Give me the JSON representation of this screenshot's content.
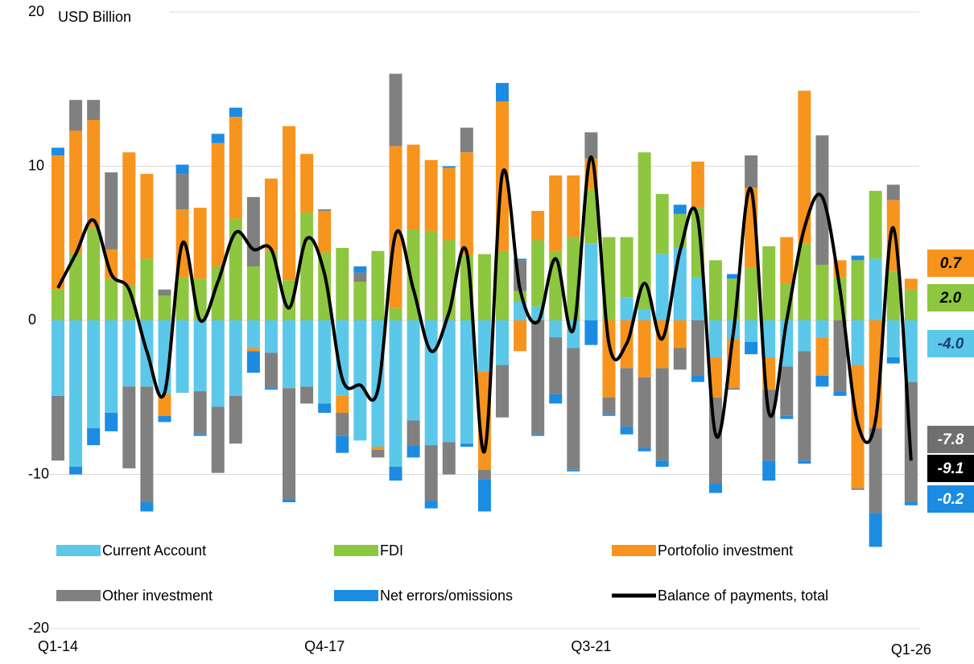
{
  "chart_data": {
    "type": "bar",
    "stacked": true,
    "ylabel": "USD Billion",
    "categories": [
      "Q1-14",
      null,
      null,
      null,
      null,
      null,
      null,
      null,
      null,
      null,
      null,
      null,
      null,
      null,
      null,
      "Q4-17",
      null,
      null,
      null,
      null,
      null,
      null,
      null,
      null,
      null,
      null,
      null,
      null,
      null,
      null,
      "Q3-21",
      null,
      null,
      null,
      null,
      null,
      null,
      null,
      null,
      null,
      null,
      null,
      null,
      null,
      null,
      null,
      null,
      null,
      "Q1-26"
    ],
    "ylim": [
      -20,
      20
    ],
    "yticks": [
      -20,
      -10,
      0,
      10,
      20
    ],
    "grid": true,
    "series": [
      {
        "name": "Current Account",
        "color": "#5bc8ea",
        "end_label": "-4.0",
        "values": [
          -4.9,
          -9.5,
          -7.0,
          -6.0,
          -4.3,
          -4.3,
          -4.8,
          -4.7,
          -4.6,
          -5.6,
          -4.9,
          -1.8,
          -2.1,
          -4.4,
          -4.3,
          -5.4,
          -4.9,
          -7.8,
          -8.2,
          -9.5,
          -6.5,
          -8.1,
          -7.9,
          -8.0,
          -3.3,
          -2.9,
          1.2,
          0.9,
          -1.1,
          -1.8,
          5.0,
          0,
          1.5,
          0.7,
          4.3,
          4.7,
          2.8,
          -2.4,
          -1.2,
          -1.4,
          -2.4,
          -3.0,
          -2.0,
          -1.1,
          0,
          -2.9,
          4.0,
          -2.4,
          -4.0
        ]
      },
      {
        "name": "FDI",
        "color": "#8dc63f",
        "end_label": "2.0",
        "values": [
          2.0,
          4.3,
          6.0,
          2.7,
          2.3,
          4.0,
          1.6,
          2.8,
          2.7,
          3.5,
          6.6,
          3.5,
          4.5,
          2.6,
          7.0,
          4.4,
          4.7,
          2.5,
          4.5,
          0.8,
          5.9,
          5.8,
          5.2,
          4.2,
          4.3,
          4.5,
          0.7,
          4.3,
          4.5,
          5.4,
          3.5,
          5.4,
          3.9,
          10.2,
          3.9,
          2.2,
          4.5,
          3.9,
          2.7,
          3.4,
          4.8,
          2.4,
          5.0,
          3.6,
          2.8,
          3.9,
          4.4,
          3.2,
          2.0
        ]
      },
      {
        "name": "Portofolio investment",
        "color": "#f7941d",
        "end_label": "0.7",
        "values": [
          8.7,
          8.0,
          7.0,
          1.9,
          8.6,
          5.5,
          -1.4,
          4.4,
          4.6,
          8.0,
          6.6,
          -0.2,
          4.7,
          10.0,
          3.8,
          2.7,
          -1.1,
          0,
          -0.2,
          10.5,
          5.5,
          4.6,
          4.7,
          6.7,
          -6.4,
          9.7,
          -2.0,
          1.9,
          4.9,
          4.0,
          2.0,
          -5.0,
          -3.1,
          -3.7,
          -3.1,
          -1.8,
          3.0,
          -2.6,
          -3.2,
          5.2,
          -2.1,
          3.0,
          9.9,
          -2.5,
          1.1,
          -8.0,
          -7.0,
          4.6,
          0.7
        ]
      },
      {
        "name": "Other investment",
        "color": "#808080",
        "end_label": "-7.8",
        "values": [
          -4.2,
          2.0,
          1.3,
          5.0,
          -5.3,
          -7.5,
          0.4,
          2.3,
          -2.8,
          -4.3,
          -3.1,
          4.5,
          -2.3,
          -7.2,
          -1.1,
          0.1,
          -1.5,
          0.6,
          -0.5,
          4.7,
          -1.6,
          -3.6,
          -2.1,
          1.6,
          -0.6,
          -3.4,
          2.0,
          -7.4,
          -3.7,
          -7.9,
          1.7,
          -1.1,
          -3.8,
          -4.6,
          -6.0,
          -1.4,
          -3.6,
          -5.6,
          -0.1,
          2.1,
          -4.6,
          -3.2,
          -7.1,
          8.4,
          -4.6,
          -0.1,
          -5.5,
          1.0,
          -7.8
        ]
      },
      {
        "name": "Net errors/omissions",
        "color": "#1c8ce3",
        "end_label": "-0.2",
        "values": [
          0.5,
          -0.5,
          -1.1,
          -1.2,
          0,
          -0.6,
          -0.4,
          0.6,
          -0.1,
          0.6,
          0.6,
          -1.4,
          -0.1,
          -0.2,
          0,
          -0.6,
          -1.1,
          0.4,
          0,
          -0.9,
          -0.8,
          -0.5,
          0.1,
          -0.2,
          -2.1,
          1.2,
          0.1,
          -0.1,
          -0.6,
          -0.1,
          -1.6,
          -0.1,
          -0.5,
          -0.2,
          -0.4,
          0.6,
          -0.4,
          -0.6,
          0.3,
          -0.8,
          -1.3,
          -0.2,
          -0.2,
          -0.7,
          -0.3,
          0.3,
          -2.2,
          -0.4,
          -0.2
        ]
      },
      {
        "name": "Balance of payments, total",
        "type": "line",
        "color": "#000000",
        "end_label": "-9.1",
        "values": [
          2.1,
          4.3,
          6.5,
          3,
          2,
          -2,
          -4.7,
          5,
          0,
          2.5,
          5.7,
          4.6,
          4.6,
          0.8,
          5.3,
          3,
          -3.8,
          -4.2,
          -4.5,
          5.6,
          2,
          -2,
          0.5,
          4.4,
          -8.5,
          9.5,
          2,
          -0.1,
          4,
          -0.6,
          10.6,
          -1.5,
          -1.5,
          2.4,
          -1.2,
          4.5,
          6.6,
          -7.4,
          -0.8,
          8.5,
          -6,
          0,
          6,
          8,
          2,
          -6.7,
          -6.5,
          6,
          -9.1
        ]
      }
    ]
  }
}
